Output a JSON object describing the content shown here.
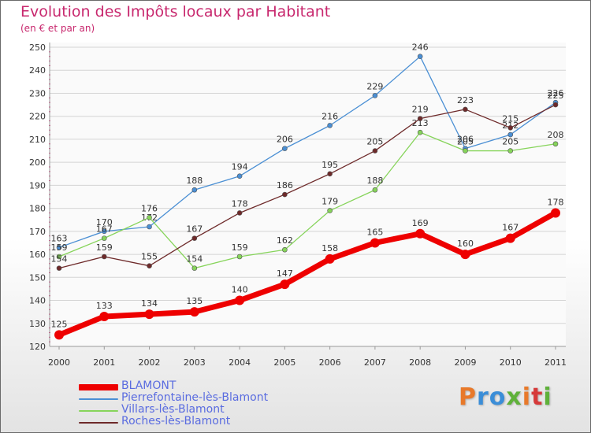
{
  "title": "Evolution des Impôts locaux par Habitant",
  "subtitle": "(en € et par an)",
  "logo": {
    "text": "Proxiti",
    "colors": [
      "#e8792a",
      "#3b8ed8",
      "#3b8ed8",
      "#5fb13a",
      "#e8792a",
      "#d63a3a",
      "#5fb13a"
    ]
  },
  "chart_data": {
    "type": "line",
    "x": [
      "2000",
      "2001",
      "2002",
      "2003",
      "2004",
      "2005",
      "2006",
      "2007",
      "2008",
      "2009",
      "2010",
      "2011"
    ],
    "ylim": [
      120,
      250
    ],
    "yticks": [
      "120",
      "130",
      "140",
      "150",
      "160",
      "170",
      "180",
      "190",
      "200",
      "210",
      "220",
      "230",
      "240",
      "250"
    ],
    "grid": "horizontal",
    "legend_position": "bottom-left",
    "series": [
      {
        "name": "Pierrefontaine-lès-Blamont",
        "color": "#4a8fd4",
        "values": [
          163,
          170,
          172,
          188,
          194,
          206,
          216,
          229,
          246,
          206,
          212,
          226
        ],
        "labels": [
          "163",
          "170",
          "172",
          "188",
          "194",
          "206",
          "216",
          "229",
          "246",
          "206",
          "212",
          "226"
        ]
      },
      {
        "name": "Villars-lès-Blamont",
        "color": "#86d45a",
        "values": [
          159,
          167,
          176,
          154,
          159,
          162,
          179,
          188,
          213,
          205,
          205,
          208
        ],
        "labels": [
          "159",
          "167",
          "176",
          "154",
          "159",
          "162",
          "179",
          "188",
          "213",
          "205",
          "205",
          "208"
        ]
      },
      {
        "name": "Roches-lès-Blamont",
        "color": "#6e2a2a",
        "values": [
          154,
          159,
          155,
          167,
          178,
          186,
          195,
          205,
          219,
          223,
          215,
          225
        ],
        "labels": [
          "154",
          "159",
          "155",
          "167",
          "178",
          "186",
          "195",
          "205",
          "219",
          "223",
          "215",
          "225"
        ]
      },
      {
        "name": "BLAMONT",
        "color": "#ee0000",
        "values": [
          125,
          133,
          134,
          135,
          140,
          147,
          158,
          165,
          169,
          160,
          167,
          178
        ],
        "labels": [
          "125",
          "133",
          "134",
          "135",
          "140",
          "147",
          "158",
          "165",
          "169",
          "160",
          "167",
          "178"
        ]
      }
    ],
    "legend": [
      "BLAMONT",
      "Pierrefontaine-lès-Blamont",
      "Villars-lès-Blamont",
      "Roches-lès-Blamont"
    ]
  }
}
